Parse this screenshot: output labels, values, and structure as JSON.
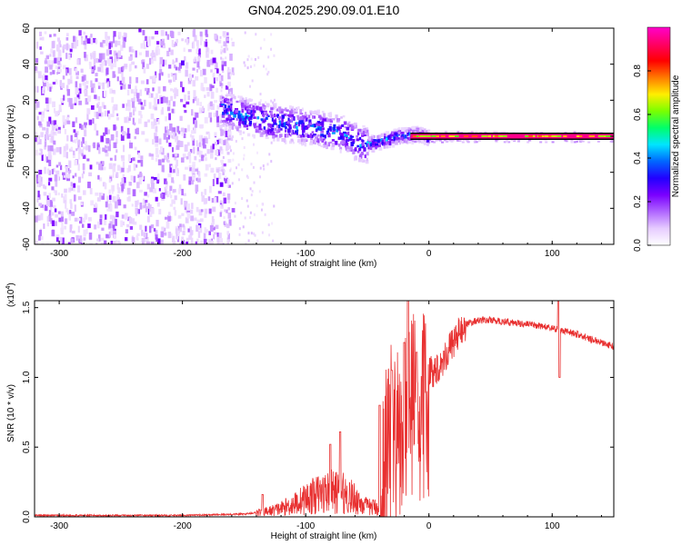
{
  "title": "GN04.2025.290.09.01.E10",
  "chart_data": [
    {
      "type": "heatmap",
      "panel": "spectrogram",
      "xlabel": "Height of straight line (km)",
      "ylabel": "Frequency (Hz)",
      "xlim": [
        -320,
        150
      ],
      "ylim": [
        -60,
        60
      ],
      "xticks": [
        -300,
        -200,
        -100,
        0,
        100
      ],
      "yticks": [
        -60,
        -40,
        -20,
        0,
        20,
        40,
        60
      ],
      "colorbar": {
        "label": "Normalized spectral amplitude",
        "range": [
          0,
          1
        ],
        "ticks": [
          0.0,
          0.2,
          0.4,
          0.6,
          0.8
        ],
        "colors": [
          "#ffffff",
          "#e6ccff",
          "#b066ff",
          "#7a00ff",
          "#2200ff",
          "#0066ff",
          "#00e5ff",
          "#00ff6a",
          "#7aff00",
          "#ffee00",
          "#ff7a00",
          "#ff0000",
          "#ff0066",
          "#ff00cc"
        ]
      },
      "features": [
        {
          "name": "broadband noise region",
          "x_range": [
            -320,
            -170
          ],
          "freq_range": [
            -60,
            60
          ],
          "amplitude": 0.1
        },
        {
          "name": "chirp trail",
          "points": [
            [
              -170,
              16
            ],
            [
              -150,
              12
            ],
            [
              -130,
              9
            ],
            [
              -110,
              7
            ],
            [
              -90,
              5
            ],
            [
              -70,
              2
            ],
            [
              -55,
              -4
            ],
            [
              -40,
              -2
            ],
            [
              -25,
              1
            ],
            [
              -10,
              2
            ],
            [
              0,
              0
            ]
          ],
          "amplitude": 0.4
        },
        {
          "name": "steady tone",
          "x_range": [
            -15,
            150
          ],
          "frequency": 0,
          "amplitude": 0.95
        }
      ]
    },
    {
      "type": "line",
      "panel": "snr",
      "xlabel": "Height of straight line (km)",
      "ylabel": "SNR (10 * v/v)",
      "scale_label": "(x10",
      "scale_exp": "4",
      "xlim": [
        -320,
        150
      ],
      "ylim": [
        0,
        1.55
      ],
      "xticks": [
        -300,
        -200,
        -100,
        0,
        100
      ],
      "yticks": [
        0.0,
        0.5,
        1.0,
        1.5
      ],
      "series": [
        {
          "name": "SNR",
          "color": "#e83030",
          "envelope": {
            "x": [
              -320,
              -200,
              -150,
              -140,
              -130,
              -120,
              -110,
              -100,
              -90,
              -80,
              -70,
              -60,
              -50,
              -40,
              -35,
              -30,
              -25,
              -20,
              -15,
              -10,
              0,
              10,
              20,
              30,
              40,
              50,
              60,
              70,
              80,
              90,
              100,
              110,
              120,
              130,
              140,
              150
            ],
            "y": [
              0.01,
              0.01,
              0.02,
              0.03,
              0.04,
              0.06,
              0.09,
              0.13,
              0.16,
              0.18,
              0.17,
              0.13,
              0.07,
              0.07,
              0.62,
              0.76,
              0.85,
              0.9,
              0.95,
              1.0,
              1.02,
              1.1,
              1.26,
              1.38,
              1.41,
              1.41,
              1.4,
              1.39,
              1.38,
              1.37,
              1.35,
              1.33,
              1.31,
              1.28,
              1.25,
              1.22
            ]
          },
          "spikes": [
            [
              -135,
              0.16
            ],
            [
              -80,
              0.52
            ],
            [
              -72,
              0.61
            ],
            [
              -40,
              0.8
            ],
            [
              -30,
              1.05
            ],
            [
              -20,
              1.25
            ],
            [
              -17,
              1.55
            ],
            [
              -10,
              1.18
            ],
            [
              105,
              1.55
            ],
            [
              106,
              1.0
            ]
          ]
        }
      ]
    }
  ]
}
